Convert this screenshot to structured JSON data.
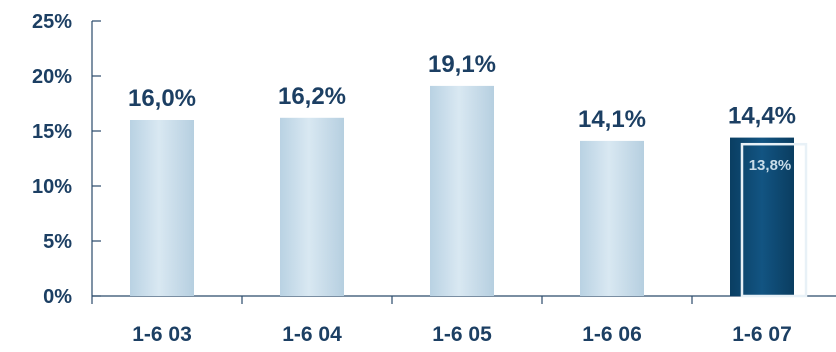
{
  "chart_data": {
    "type": "bar",
    "categories": [
      "1-6 03",
      "1-6 04",
      "1-6 05",
      "1-6 06",
      "1-6 07"
    ],
    "values": [
      16.0,
      16.2,
      19.1,
      14.1,
      14.4
    ],
    "data_labels": [
      "16,0%",
      "16,2%",
      "19,1%",
      "14,1%",
      "14,4%"
    ],
    "comparison": {
      "category": "1-6 07",
      "value": 13.8,
      "label": "13,8%"
    },
    "ylim": [
      0,
      25
    ],
    "yticks": [
      0,
      5,
      10,
      15,
      20,
      25
    ],
    "ytick_labels": [
      "0%",
      "5%",
      "10%",
      "15%",
      "20%",
      "25%"
    ],
    "grid": false,
    "highlight_index": 4,
    "colors": {
      "bar": "#c7dcea",
      "bar_highlight": "#0d4a73",
      "outline": "#e8f1f7",
      "text": "#1c3f63",
      "axis": "#2a4a6a"
    }
  }
}
